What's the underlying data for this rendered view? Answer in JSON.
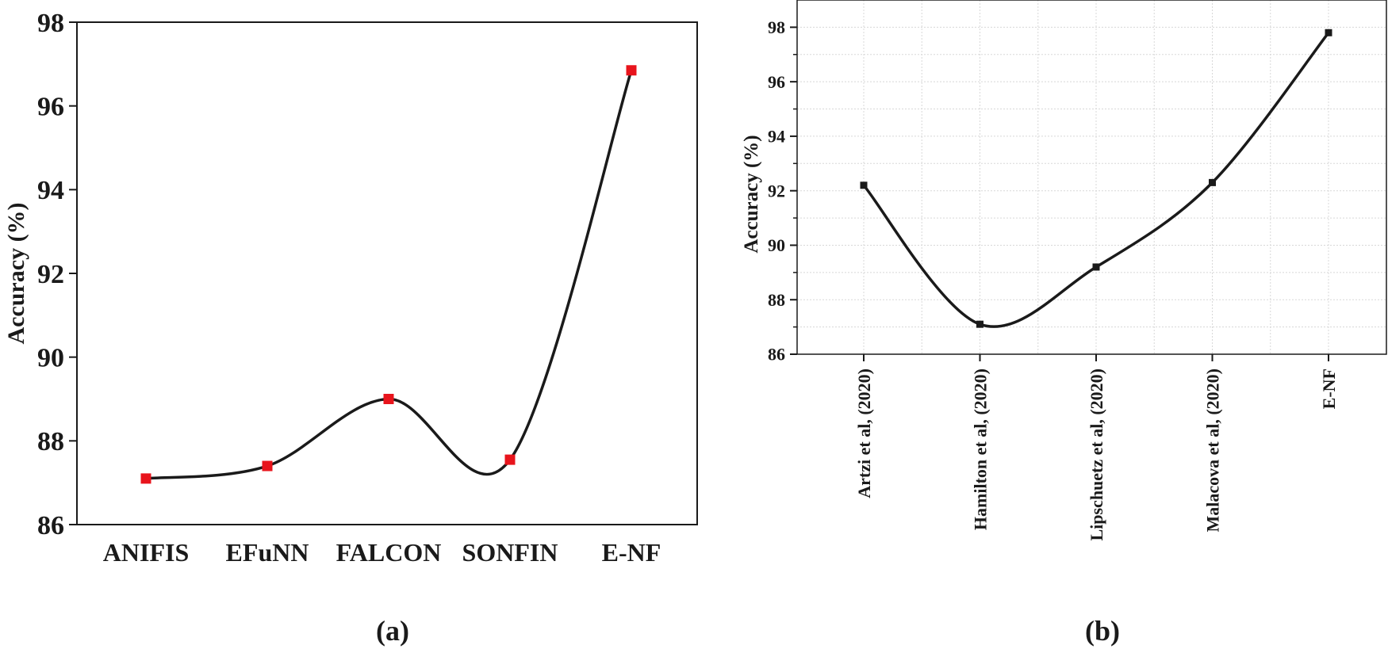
{
  "chart_data": [
    {
      "type": "line",
      "panel": "(a)",
      "categories": [
        "ANIFIS",
        "EFuNN",
        "FALCON",
        "SONFIN",
        "E-NF"
      ],
      "values": [
        87.1,
        87.4,
        89.0,
        87.55,
        96.85
      ],
      "ylabel": "Accuracy (%)",
      "xlabel": "",
      "ylim": [
        86,
        98
      ],
      "yticks": [
        "86",
        "88",
        "90",
        "92",
        "94",
        "96",
        "98"
      ],
      "grid": false,
      "marker_color": "#e8141c",
      "line_color": "#1a1a1a"
    },
    {
      "type": "line",
      "panel": "(b)",
      "categories": [
        "Artzi et al, (2020)",
        "Hamilton et al, (2020)",
        "Lipschuetz et al, (2020)",
        "Malacova et al, (2020)",
        "E-NF"
      ],
      "values": [
        92.2,
        87.1,
        89.2,
        92.3,
        97.8
      ],
      "ylabel": "Accuracy (%)",
      "xlabel": "",
      "ylim": [
        86,
        99
      ],
      "yticks": [
        "86",
        "88",
        "90",
        "92",
        "94",
        "96",
        "98"
      ],
      "grid": true,
      "marker_color": "#1a1a1a",
      "line_color": "#1a1a1a"
    }
  ]
}
